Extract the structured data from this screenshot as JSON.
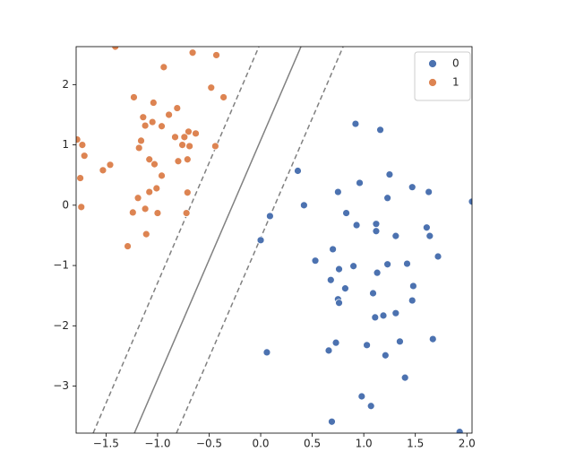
{
  "chart_data": {
    "type": "scatter",
    "xlim": [
      -1.79,
      2.05
    ],
    "ylim": [
      -3.78,
      2.63
    ],
    "xticks": [
      {
        "value": -1.5,
        "label": "−1.5"
      },
      {
        "value": -1,
        "label": "−1.0"
      },
      {
        "value": -0.5,
        "label": "−0.5"
      },
      {
        "value": 0,
        "label": "0.0"
      },
      {
        "value": 0.5,
        "label": "0.5"
      },
      {
        "value": 1,
        "label": "1.0"
      },
      {
        "value": 1.5,
        "label": "1.5"
      },
      {
        "value": 2,
        "label": "2.0"
      }
    ],
    "yticks": [
      {
        "value": -3,
        "label": "−3"
      },
      {
        "value": -2,
        "label": "−2"
      },
      {
        "value": -1,
        "label": "−1"
      },
      0,
      1,
      2
    ],
    "grid": false,
    "legend": "upper right",
    "series": [
      {
        "name": "0",
        "color": "#4c72b0",
        "x": [
          0.92,
          1.16,
          0.36,
          1.25,
          0.96,
          0.75,
          1.23,
          1.47,
          1.63,
          0.42,
          0.09,
          0.83,
          0.93,
          1.12,
          1.12,
          1.31,
          1.61,
          1.64,
          0.0,
          0.7,
          0.53,
          0.9,
          0.76,
          1.23,
          1.42,
          1.72,
          1.13,
          0.68,
          0.82,
          1.48,
          1.09,
          0.75,
          0.76,
          1.47,
          1.31,
          1.19,
          1.11,
          0.73,
          0.66,
          1.03,
          1.35,
          1.67,
          0.06,
          1.21,
          1.4,
          0.98,
          1.07,
          0.69,
          1.93,
          2.05
        ],
        "values": [
          1.35,
          1.25,
          0.57,
          0.51,
          0.37,
          0.22,
          0.12,
          0.3,
          0.22,
          0.0,
          -0.18,
          -0.13,
          -0.33,
          -0.31,
          -0.43,
          -0.51,
          -0.37,
          -0.51,
          -0.58,
          -0.73,
          -0.92,
          -1.01,
          -1.06,
          -0.98,
          -0.97,
          -0.85,
          -1.12,
          -1.24,
          -1.38,
          -1.34,
          -1.46,
          -1.56,
          -1.62,
          -1.58,
          -1.79,
          -1.83,
          -1.86,
          -2.28,
          -2.41,
          -2.32,
          -2.26,
          -2.22,
          -2.44,
          -2.49,
          -2.86,
          -3.17,
          -3.33,
          -3.59,
          -3.76,
          0.06
        ]
      },
      {
        "name": "1",
        "color": "#dd8452",
        "x": [
          -1.41,
          -0.66,
          -0.43,
          -0.94,
          -0.48,
          -1.23,
          -0.36,
          -1.04,
          -0.81,
          -1.14,
          -1.05,
          -0.89,
          -1.12,
          -0.96,
          -0.7,
          -0.74,
          -0.63,
          -0.83,
          -1.16,
          -1.18,
          -0.76,
          -0.44,
          -1.73,
          -0.69,
          -1.71,
          -1.08,
          -1.03,
          -0.8,
          -0.71,
          -1.46,
          -1.53,
          -0.96,
          -1.08,
          -1.01,
          -0.71,
          -1.19,
          -1.74,
          -1.12,
          -1.24,
          -1.0,
          -0.72,
          -1.11,
          -1.29,
          -1.78,
          -1.75
        ],
        "values": [
          2.63,
          2.53,
          2.49,
          2.29,
          1.95,
          1.79,
          1.79,
          1.7,
          1.61,
          1.46,
          1.38,
          1.5,
          1.32,
          1.31,
          1.22,
          1.13,
          1.19,
          1.13,
          1.07,
          0.95,
          1.0,
          0.98,
          1.0,
          0.98,
          0.82,
          0.76,
          0.68,
          0.73,
          0.76,
          0.67,
          0.58,
          0.49,
          0.22,
          0.28,
          0.21,
          0.12,
          -0.03,
          -0.06,
          -0.12,
          -0.13,
          -0.13,
          -0.48,
          -0.68,
          1.09,
          0.45
        ]
      }
    ],
    "lines": [
      {
        "color": "#808080",
        "dashed": true,
        "x": [
          -1.625,
          -0.017
        ],
        "values": [
          -3.78,
          2.63
        ]
      },
      {
        "color": "#808080",
        "dashed": false,
        "x": [
          -1.225,
          0.391
        ],
        "values": [
          -3.78,
          2.63
        ]
      },
      {
        "color": "#808080",
        "dashed": true,
        "x": [
          -0.817,
          0.8
        ],
        "values": [
          -3.78,
          2.63
        ]
      }
    ]
  }
}
